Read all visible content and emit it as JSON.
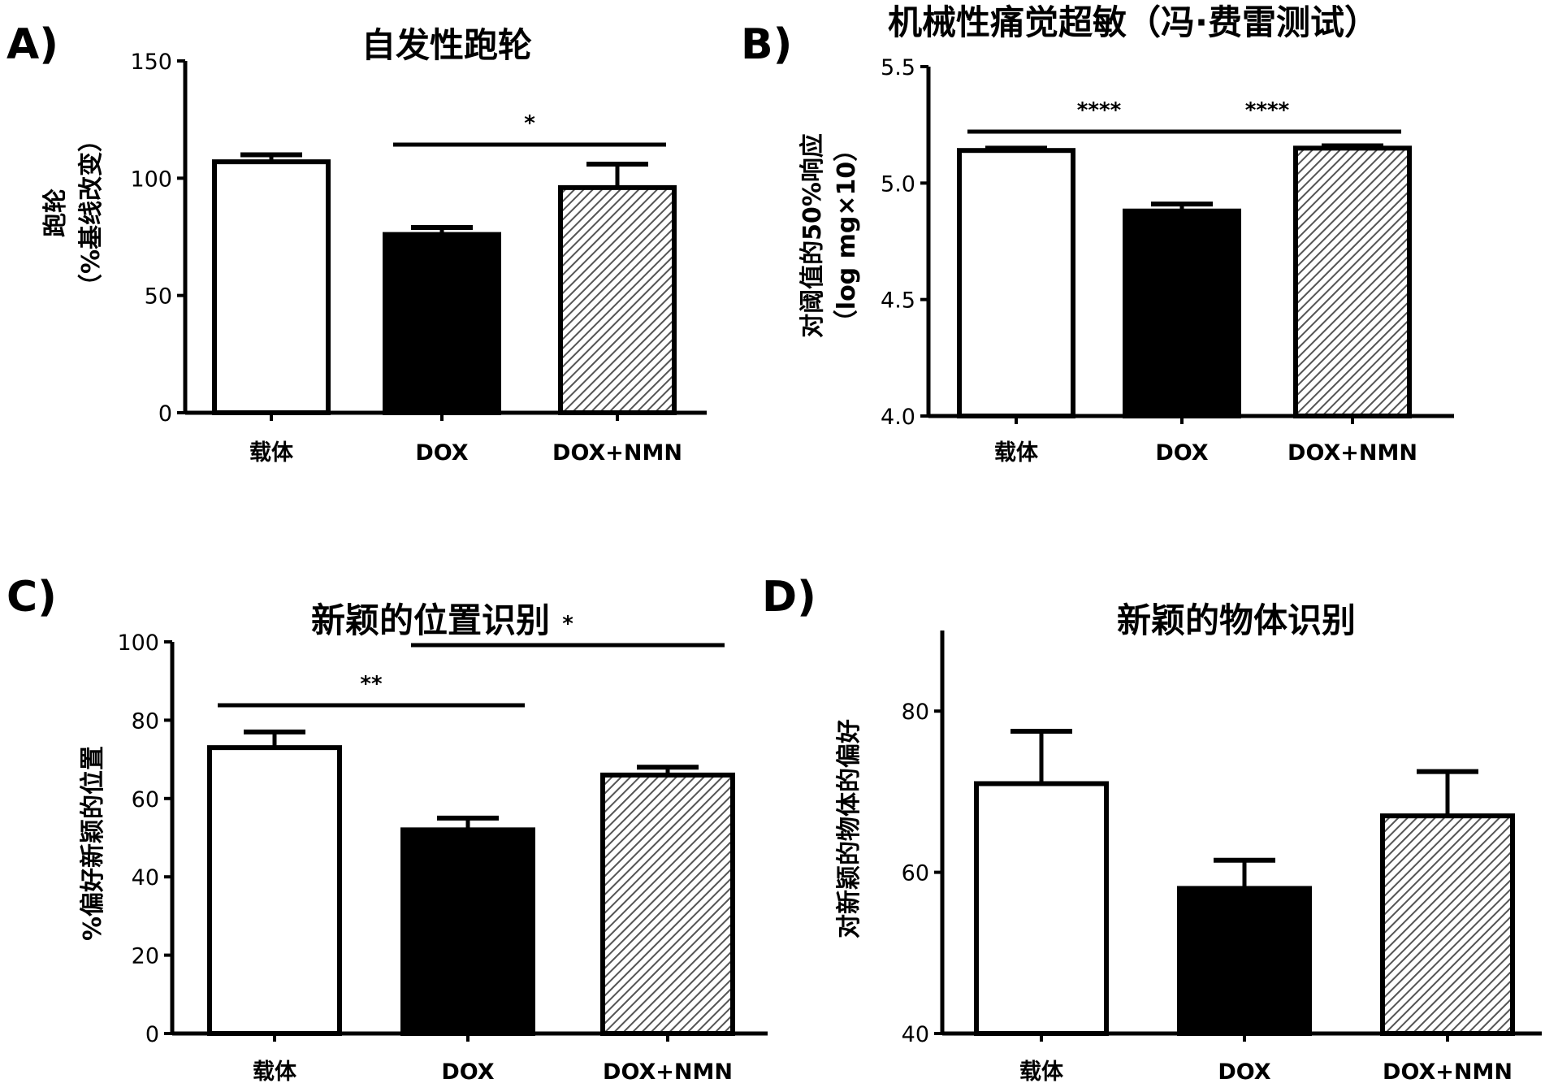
{
  "figure": {
    "panels": [
      {
        "letter": "A)"
      },
      {
        "letter": "B)"
      },
      {
        "letter": "C)"
      },
      {
        "letter": "D)"
      }
    ]
  },
  "colors": {
    "ink": "#000000",
    "vehicle_fill": "#ffffff",
    "dox_fill": "#000000",
    "hatch": "#555555"
  },
  "chart_data": [
    {
      "type": "bar",
      "title": "自发性跑轮",
      "ylabel_lines": [
        "跑轮",
        "（%基线改变）"
      ],
      "xlabel": "",
      "categories": [
        "载体",
        "DOX",
        "DOX+NMN"
      ],
      "values": [
        107,
        76,
        96
      ],
      "errors": [
        3,
        3,
        10
      ],
      "ylim": [
        0,
        150
      ],
      "yticks": [
        0,
        50,
        100,
        150
      ],
      "significance": [
        {
          "from": 1,
          "to": 2,
          "label": "*"
        }
      ]
    },
    {
      "type": "bar",
      "title": "机械性痛觉超敏（冯·费雷测试）",
      "ylabel_lines": [
        "对阈值的50%响应",
        "（log mg×10）"
      ],
      "xlabel": "",
      "categories": [
        "载体",
        "DOX",
        "DOX+NMN"
      ],
      "values": [
        5.14,
        4.88,
        5.15
      ],
      "errors": [
        0.01,
        0.03,
        0.01
      ],
      "ylim": [
        4.0,
        5.5
      ],
      "yticks": [
        "4.0",
        "4.5",
        "5.0",
        "5.5"
      ],
      "significance": [
        {
          "from": 0,
          "to": 1,
          "label": "****"
        },
        {
          "from": 1,
          "to": 2,
          "label": "****"
        }
      ]
    },
    {
      "type": "bar",
      "title": "新颖的位置识别",
      "ylabel_lines": [
        "%偏好新颖的位置"
      ],
      "xlabel": "",
      "categories": [
        "载体",
        "DOX",
        "DOX+NMN"
      ],
      "values": [
        73,
        52,
        66
      ],
      "errors": [
        4,
        3,
        2
      ],
      "ylim": [
        0,
        100
      ],
      "yticks": [
        0,
        20,
        40,
        60,
        80,
        100
      ],
      "significance": [
        {
          "from": 0,
          "to": 1,
          "label": "**"
        },
        {
          "from": 1,
          "to": 2,
          "label": "*"
        }
      ]
    },
    {
      "type": "bar",
      "title": "新颖的物体识别",
      "ylabel_lines": [
        "对新颖的物体的偏好"
      ],
      "xlabel": "",
      "categories": [
        "载体",
        "DOX",
        "DOX+NMN"
      ],
      "values": [
        71,
        58,
        67
      ],
      "errors": [
        6.5,
        3.5,
        5.5
      ],
      "ylim": [
        40,
        90
      ],
      "yticks": [
        40,
        60,
        80
      ],
      "significance": []
    }
  ]
}
